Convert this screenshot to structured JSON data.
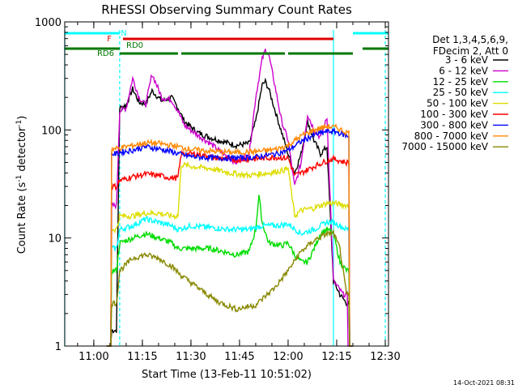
{
  "chart_data": {
    "type": "line",
    "title": "RHESSI Observing Summary Count Rates",
    "xlabel": "Start Time (13-Feb-11 10:51:02)",
    "ylabel_main": "Count Rate (s",
    "ylabel_sup1": "-1",
    "ylabel_mid": " detector",
    "ylabel_sup2": "-1",
    "ylabel_end": ")",
    "y_scale": "log",
    "ylim": [
      1,
      1000
    ],
    "xlim": [
      "10:51:02",
      "12:31:00"
    ],
    "x_ticks": [
      "11:00",
      "11:15",
      "11:30",
      "11:45",
      "12:00",
      "12:15",
      "12:30"
    ],
    "y_ticks": [
      "1",
      "10",
      "100",
      "1000"
    ],
    "legend_header": [
      "Det 1,3,4,5,6,9,",
      "FDecim 2, Att 0"
    ],
    "timestamp": "14-Oct-2021 08:31",
    "state_flags": {
      "N": {
        "label": "N",
        "color": "#00ffff",
        "spans": [
          [
            "10:51",
            "11:08"
          ],
          [
            "12:20",
            "12:31"
          ]
        ]
      },
      "F": {
        "label": "F",
        "color": "#e00000",
        "spans": [
          [
            "11:09",
            "12:14"
          ]
        ]
      },
      "RD0": {
        "label": "RD0",
        "color": "#007700",
        "spans": [
          [
            "10:51",
            "11:08"
          ],
          [
            "12:23",
            "12:31"
          ]
        ]
      },
      "RD6": {
        "label": "RD6",
        "color": "#007700",
        "spans": [
          [
            "11:08",
            "11:26"
          ],
          [
            "11:27",
            "11:59"
          ],
          [
            "12:00",
            "12:20"
          ]
        ]
      }
    },
    "vertical_lines": [
      {
        "time": "10:51",
        "color": "#00ffff",
        "style": "solid"
      },
      {
        "time": "11:08",
        "color": "#00ffff",
        "style": "dashed"
      },
      {
        "time": "12:14",
        "color": "#00ffff",
        "style": "solid"
      },
      {
        "time": "12:30",
        "color": "#00ffff",
        "style": "dashed"
      }
    ],
    "series": [
      {
        "name": "3 - 6 keV",
        "color": "#000000",
        "points": [
          [
            "11:04",
            0
          ],
          [
            "11:07",
            1.4
          ],
          [
            "11:08",
            160
          ],
          [
            "11:10",
            170
          ],
          [
            "11:12",
            240
          ],
          [
            "11:14",
            180
          ],
          [
            "11:16",
            175
          ],
          [
            "11:18",
            230
          ],
          [
            "11:21",
            185
          ],
          [
            "11:24",
            200
          ],
          [
            "11:26",
            160
          ],
          [
            "11:28",
            120
          ],
          [
            "11:32",
            95
          ],
          [
            "11:36",
            85
          ],
          [
            "11:40",
            78
          ],
          [
            "11:44",
            72
          ],
          [
            "11:48",
            75
          ],
          [
            "11:50",
            120
          ],
          [
            "11:52",
            260
          ],
          [
            "11:53",
            280
          ],
          [
            "11:54",
            240
          ],
          [
            "11:56",
            150
          ],
          [
            "11:58",
            95
          ],
          [
            "12:00",
            60
          ],
          [
            "12:02",
            40
          ],
          [
            "12:04",
            60
          ],
          [
            "12:06",
            120
          ],
          [
            "12:08",
            80
          ],
          [
            "12:10",
            60
          ],
          [
            "12:12",
            70
          ],
          [
            "12:14",
            4
          ],
          [
            "12:16",
            3
          ],
          [
            "12:18",
            2.5
          ],
          [
            "12:20",
            0
          ]
        ]
      },
      {
        "name": "6 - 12 keV",
        "color": "#cc00cc",
        "points": [
          [
            "11:04",
            0
          ],
          [
            "11:07",
            20
          ],
          [
            "11:08",
            150
          ],
          [
            "11:10",
            160
          ],
          [
            "11:12",
            300
          ],
          [
            "11:14",
            200
          ],
          [
            "11:16",
            170
          ],
          [
            "11:18",
            330
          ],
          [
            "11:21",
            200
          ],
          [
            "11:24",
            190
          ],
          [
            "11:26",
            150
          ],
          [
            "11:28",
            110
          ],
          [
            "11:32",
            90
          ],
          [
            "11:36",
            75
          ],
          [
            "11:40",
            60
          ],
          [
            "11:44",
            50
          ],
          [
            "11:48",
            60
          ],
          [
            "11:50",
            200
          ],
          [
            "11:52",
            450
          ],
          [
            "11:53",
            550
          ],
          [
            "11:54",
            500
          ],
          [
            "11:56",
            250
          ],
          [
            "11:58",
            120
          ],
          [
            "12:00",
            80
          ],
          [
            "12:02",
            30
          ],
          [
            "12:04",
            50
          ],
          [
            "12:06",
            140
          ],
          [
            "12:08",
            100
          ],
          [
            "12:10",
            85
          ],
          [
            "12:12",
            130
          ],
          [
            "12:14",
            4
          ],
          [
            "12:17",
            3
          ],
          [
            "12:20",
            0
          ]
        ]
      },
      {
        "name": "12 - 25 keV",
        "color": "#00dd00",
        "points": [
          [
            "11:04",
            0
          ],
          [
            "11:07",
            5
          ],
          [
            "11:08",
            9
          ],
          [
            "11:12",
            10
          ],
          [
            "11:16",
            11
          ],
          [
            "11:20",
            10
          ],
          [
            "11:24",
            9
          ],
          [
            "11:26",
            8
          ],
          [
            "11:30",
            8
          ],
          [
            "11:36",
            8
          ],
          [
            "11:40",
            7.5
          ],
          [
            "11:44",
            7
          ],
          [
            "11:48",
            7.5
          ],
          [
            "11:50",
            12
          ],
          [
            "11:51",
            25
          ],
          [
            "11:52",
            14
          ],
          [
            "11:54",
            9
          ],
          [
            "11:58",
            8.5
          ],
          [
            "12:00",
            9
          ],
          [
            "12:02",
            7
          ],
          [
            "12:04",
            6
          ],
          [
            "12:06",
            6
          ],
          [
            "12:08",
            8
          ],
          [
            "12:10",
            11
          ],
          [
            "12:12",
            12
          ],
          [
            "12:14",
            11
          ],
          [
            "12:16",
            6
          ],
          [
            "12:18",
            5
          ],
          [
            "12:20",
            0
          ]
        ]
      },
      {
        "name": "25 - 50 keV",
        "color": "#00ffff",
        "points": [
          [
            "11:04",
            0
          ],
          [
            "11:07",
            8
          ],
          [
            "11:08",
            12
          ],
          [
            "11:12",
            13
          ],
          [
            "11:16",
            15
          ],
          [
            "11:20",
            14
          ],
          [
            "11:24",
            13
          ],
          [
            "11:26",
            12
          ],
          [
            "11:30",
            13
          ],
          [
            "11:36",
            12.5
          ],
          [
            "11:42",
            12
          ],
          [
            "11:48",
            12
          ],
          [
            "11:52",
            13
          ],
          [
            "11:56",
            13
          ],
          [
            "12:00",
            13.5
          ],
          [
            "12:04",
            11
          ],
          [
            "12:08",
            12
          ],
          [
            "12:12",
            14
          ],
          [
            "12:14",
            14
          ],
          [
            "12:16",
            13
          ],
          [
            "12:18",
            12
          ],
          [
            "12:20",
            0
          ]
        ]
      },
      {
        "name": "50 - 100 keV",
        "color": "#dddd00",
        "points": [
          [
            "11:04",
            0
          ],
          [
            "11:07",
            12
          ],
          [
            "11:08",
            16
          ],
          [
            "11:12",
            16
          ],
          [
            "11:16",
            17
          ],
          [
            "11:20",
            17
          ],
          [
            "11:24",
            16
          ],
          [
            "11:26",
            16
          ],
          [
            "11:27",
            48
          ],
          [
            "11:30",
            46
          ],
          [
            "11:36",
            44
          ],
          [
            "11:42",
            40
          ],
          [
            "11:48",
            38
          ],
          [
            "11:54",
            40
          ],
          [
            "11:58",
            42
          ],
          [
            "12:00",
            44
          ],
          [
            "12:02",
            16
          ],
          [
            "12:04",
            18
          ],
          [
            "12:08",
            19
          ],
          [
            "12:12",
            21
          ],
          [
            "12:14",
            21
          ],
          [
            "12:18",
            20
          ],
          [
            "12:20",
            0
          ]
        ]
      },
      {
        "name": "100 - 300 keV",
        "color": "#ff0000",
        "points": [
          [
            "11:04",
            0
          ],
          [
            "11:07",
            30
          ],
          [
            "11:08",
            34
          ],
          [
            "11:12",
            37
          ],
          [
            "11:16",
            39
          ],
          [
            "11:20",
            38
          ],
          [
            "11:24",
            36
          ],
          [
            "11:26",
            36
          ],
          [
            "11:27",
            60
          ],
          [
            "11:32",
            60
          ],
          [
            "11:38",
            55
          ],
          [
            "11:44",
            53
          ],
          [
            "11:50",
            54
          ],
          [
            "11:56",
            56
          ],
          [
            "12:00",
            55
          ],
          [
            "12:02",
            38
          ],
          [
            "12:04",
            40
          ],
          [
            "12:08",
            46
          ],
          [
            "12:12",
            52
          ],
          [
            "12:14",
            54
          ],
          [
            "12:18",
            50
          ],
          [
            "12:20",
            0
          ]
        ]
      },
      {
        "name": "300 - 800 keV",
        "color": "#0000ff",
        "points": [
          [
            "11:04",
            0
          ],
          [
            "11:07",
            60
          ],
          [
            "11:08",
            62
          ],
          [
            "11:12",
            65
          ],
          [
            "11:16",
            70
          ],
          [
            "11:20",
            67
          ],
          [
            "11:24",
            63
          ],
          [
            "11:28",
            58
          ],
          [
            "11:32",
            56
          ],
          [
            "11:38",
            55
          ],
          [
            "11:44",
            55
          ],
          [
            "11:50",
            56
          ],
          [
            "11:56",
            60
          ],
          [
            "12:00",
            65
          ],
          [
            "12:04",
            78
          ],
          [
            "12:08",
            90
          ],
          [
            "12:12",
            97
          ],
          [
            "12:15",
            96
          ],
          [
            "12:18",
            88
          ],
          [
            "12:20",
            0
          ]
        ]
      },
      {
        "name": "800 - 7000 keV",
        "color": "#ff8800",
        "points": [
          [
            "11:04",
            0
          ],
          [
            "11:07",
            67
          ],
          [
            "11:08",
            68
          ],
          [
            "11:12",
            72
          ],
          [
            "11:16",
            76
          ],
          [
            "11:20",
            75
          ],
          [
            "11:24",
            72
          ],
          [
            "11:28",
            68
          ],
          [
            "11:32",
            65
          ],
          [
            "11:38",
            63
          ],
          [
            "11:44",
            62
          ],
          [
            "11:50",
            63
          ],
          [
            "11:56",
            66
          ],
          [
            "12:00",
            72
          ],
          [
            "12:04",
            88
          ],
          [
            "12:08",
            100
          ],
          [
            "12:12",
            108
          ],
          [
            "12:15",
            105
          ],
          [
            "12:18",
            95
          ],
          [
            "12:20",
            0
          ]
        ]
      },
      {
        "name": "7000 - 15000 keV",
        "color": "#888800",
        "points": [
          [
            "11:04",
            0
          ],
          [
            "11:07",
            2.5
          ],
          [
            "11:08",
            5
          ],
          [
            "11:12",
            6.5
          ],
          [
            "11:16",
            7
          ],
          [
            "11:20",
            6.5
          ],
          [
            "11:24",
            5.5
          ],
          [
            "11:27",
            4.5
          ],
          [
            "11:32",
            3.5
          ],
          [
            "11:38",
            2.6
          ],
          [
            "11:44",
            2.2
          ],
          [
            "11:50",
            2.4
          ],
          [
            "11:56",
            3.5
          ],
          [
            "12:00",
            5
          ],
          [
            "12:04",
            7.5
          ],
          [
            "12:08",
            9.5
          ],
          [
            "12:12",
            11
          ],
          [
            "12:14",
            11
          ],
          [
            "12:16",
            8
          ],
          [
            "12:18",
            3
          ],
          [
            "12:20",
            0
          ]
        ]
      }
    ]
  }
}
